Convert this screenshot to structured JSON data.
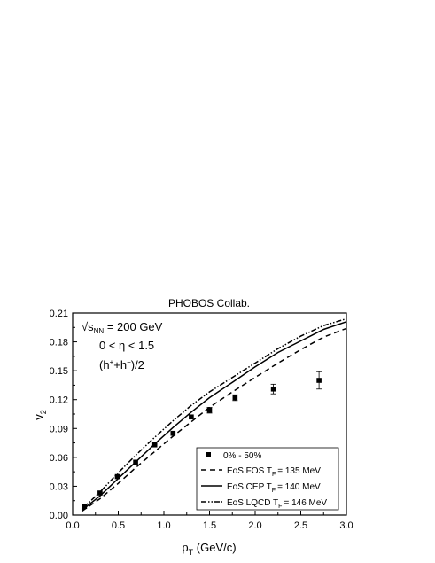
{
  "chart_data": {
    "type": "scatter",
    "title": "PHOBOS Collab.",
    "xlabel": {
      "main": "p",
      "sub": "T",
      "unit": " (GeV/c)"
    },
    "ylabel": {
      "main": "v",
      "sub": "2"
    },
    "xlim": [
      0.0,
      3.0
    ],
    "ylim": [
      0.0,
      0.21
    ],
    "xticks": [
      "0.0",
      "0.5",
      "1.0",
      "1.5",
      "2.0",
      "2.5",
      "3.0"
    ],
    "yticks": [
      "0.00",
      "0.03",
      "0.06",
      "0.09",
      "0.12",
      "0.15",
      "0.18",
      "0.21"
    ],
    "annotations": {
      "line1": {
        "sqrt": "√",
        "s": "s",
        "sub": "NN",
        "rest": " = 200 GeV"
      },
      "line2": "0 < η < 1.5",
      "line3": {
        "open": "(h",
        "sup1": "+",
        "plus": "+h",
        "sup2": "−",
        "close": ")/2"
      }
    },
    "legend": {
      "placement": "bottom-right",
      "entries": {
        "data": "0% - 50%",
        "fos": {
          "pre": "EoS FOS T",
          "sub": "F",
          "post": "= 135 MeV"
        },
        "cep": {
          "pre": "EoS CEP T",
          "sub": "F",
          "post": "= 140 MeV"
        },
        "lqcd": {
          "pre": "EoS LQCD T",
          "sub": "F",
          "post": "= 146 MeV"
        }
      }
    },
    "data_points": {
      "name": "0% - 50%",
      "marker": "square",
      "x": [
        0.13,
        0.3,
        0.49,
        0.69,
        0.9,
        1.1,
        1.3,
        1.5,
        1.78,
        2.2,
        2.7
      ],
      "y": [
        0.009,
        0.023,
        0.04,
        0.055,
        0.073,
        0.085,
        0.102,
        0.109,
        0.122,
        0.131,
        0.14
      ],
      "yerr": [
        0.001,
        0.001,
        0.001,
        0.001,
        0.001,
        0.001,
        0.002,
        0.003,
        0.003,
        0.005,
        0.009
      ]
    },
    "series": [
      {
        "name": "EoS FOS",
        "style": "dashed",
        "x": [
          0.1,
          0.3,
          0.5,
          0.7,
          0.9,
          1.1,
          1.3,
          1.5,
          1.75,
          2.0,
          2.25,
          2.5,
          2.75,
          3.0
        ],
        "y": [
          0.004,
          0.017,
          0.033,
          0.05,
          0.066,
          0.082,
          0.097,
          0.112,
          0.128,
          0.143,
          0.158,
          0.172,
          0.185,
          0.194
        ]
      },
      {
        "name": "EoS CEP",
        "style": "solid",
        "x": [
          0.1,
          0.3,
          0.5,
          0.7,
          0.9,
          1.1,
          1.3,
          1.5,
          1.75,
          2.0,
          2.25,
          2.5,
          2.75,
          3.0
        ],
        "y": [
          0.005,
          0.02,
          0.038,
          0.056,
          0.074,
          0.091,
          0.107,
          0.122,
          0.138,
          0.154,
          0.169,
          0.181,
          0.193,
          0.201
        ]
      },
      {
        "name": "EoS LQCD",
        "style": "dash-dot-dot",
        "x": [
          0.1,
          0.3,
          0.5,
          0.7,
          0.9,
          1.1,
          1.3,
          1.5,
          1.75,
          2.0,
          2.25,
          2.5,
          2.75,
          3.0
        ],
        "y": [
          0.006,
          0.024,
          0.044,
          0.063,
          0.081,
          0.098,
          0.114,
          0.128,
          0.143,
          0.158,
          0.173,
          0.186,
          0.197,
          0.204
        ]
      }
    ]
  }
}
